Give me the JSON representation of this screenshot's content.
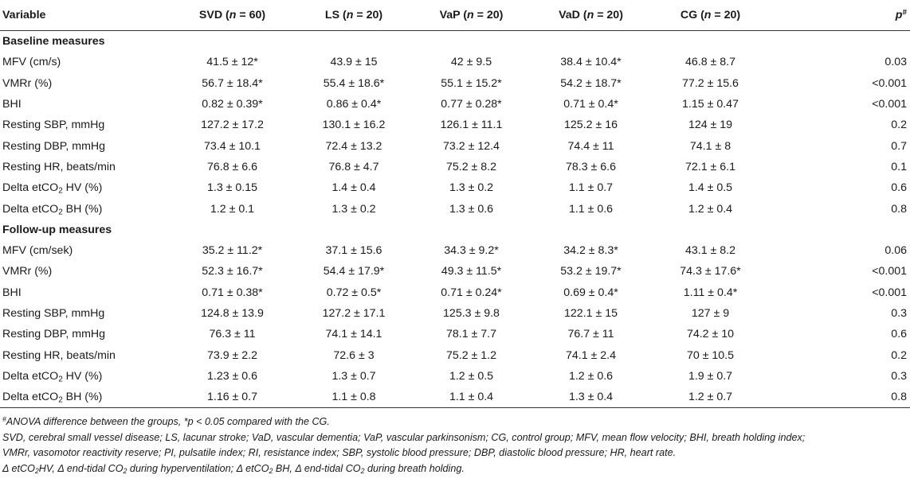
{
  "table": {
    "columns": {
      "variable": "Variable",
      "svd": {
        "name": "SVD",
        "open": "(",
        "n": "n",
        "eq": " = 60)"
      },
      "ls": {
        "name": "LS",
        "open": "(",
        "n": "n",
        "eq": " = 20)"
      },
      "vap": {
        "name": "VaP",
        "open": "(",
        "n": "n",
        "eq": " = 20)"
      },
      "vad": {
        "name": "VaD",
        "open": "(",
        "n": "n",
        "eq": " = 20)"
      },
      "cg": {
        "name": "CG",
        "open": "(",
        "n": "n",
        "eq": " = 20)"
      },
      "p": {
        "letter": "p",
        "sup": "#"
      }
    },
    "sections": [
      {
        "title": "Baseline measures",
        "rows": [
          {
            "label": "MFV (cm/s)",
            "values": [
              "41.5 ± 12*",
              "43.9 ± 15",
              "42 ± 9.5",
              "38.4 ± 10.4*",
              "46.8 ± 8.7"
            ],
            "p": "0.03"
          },
          {
            "label": "VMRr (%)",
            "values": [
              "56.7 ± 18.4*",
              "55.4 ± 18.6*",
              "55.1 ± 15.2*",
              "54.2 ± 18.7*",
              "77.2 ± 15.6"
            ],
            "p": "<0.001"
          },
          {
            "label": "BHI",
            "values": [
              "0.82 ± 0.39*",
              "0.86 ± 0.4*",
              "0.77 ± 0.28*",
              "0.71 ± 0.4*",
              "1.15 ± 0.47"
            ],
            "p": "<0.001"
          },
          {
            "label": "Resting SBP, mmHg",
            "values": [
              "127.2 ± 17.2",
              "130.1 ± 16.2",
              "126.1 ± 11.1",
              "125.2 ± 16",
              "124 ± 19"
            ],
            "p": "0.2"
          },
          {
            "label": "Resting DBP, mmHg",
            "values": [
              "73.4 ± 10.1",
              "72.4 ± 13.2",
              "73.2 ± 12.4",
              "74.4 ± 11",
              "74.1 ± 8"
            ],
            "p": "0.7"
          },
          {
            "label": "Resting HR, beats/min",
            "values": [
              "76.8 ± 6.6",
              "76.8 ± 4.7",
              "75.2 ± 8.2",
              "78.3 ± 6.6",
              "72.1 ± 6.1"
            ],
            "p": "0.1"
          },
          {
            "label_pre": "Delta etCO",
            "label_sub": "2",
            "label_post": " HV (%)",
            "values": [
              "1.3 ± 0.15",
              "1.4 ± 0.4",
              "1.3 ± 0.2",
              "1.1 ± 0.7",
              "1.4 ± 0.5"
            ],
            "p": "0.6"
          },
          {
            "label_pre": "Delta etCO",
            "label_sub": "2",
            "label_post": " BH (%)",
            "values": [
              "1.2 ± 0.1",
              "1.3 ± 0.2",
              "1.3 ± 0.6",
              "1.1 ± 0.6",
              "1.2 ± 0.4"
            ],
            "p": "0.8"
          }
        ]
      },
      {
        "title": "Follow-up measures",
        "rows": [
          {
            "label": "MFV (cm/sek)",
            "values": [
              "35.2 ± 11.2*",
              "37.1 ± 15.6",
              "34.3 ± 9.2*",
              "34.2 ± 8.3*",
              "43.1 ± 8.2"
            ],
            "p": "0.06"
          },
          {
            "label": "VMRr (%)",
            "values": [
              "52.3 ± 16.7*",
              "54.4 ± 17.9*",
              "49.3 ± 11.5*",
              "53.2 ± 19.7*",
              "74.3 ± 17.6*"
            ],
            "p": "<0.001"
          },
          {
            "label": "BHI",
            "values": [
              "0.71 ± 0.38*",
              "0.72 ± 0.5*",
              "0.71 ± 0.24*",
              "0.69 ± 0.4*",
              "1.11 ± 0.4*"
            ],
            "p": "<0.001"
          },
          {
            "label": "Resting SBP, mmHg",
            "values": [
              "124.8 ± 13.9",
              "127.2 ± 17.1",
              "125.3 ± 9.8",
              "122.1 ± 15",
              "127 ± 9"
            ],
            "p": "0.3"
          },
          {
            "label": "Resting DBP, mmHg",
            "values": [
              "76.3 ± 11",
              "74.1 ± 14.1",
              "78.1 ± 7.7",
              "76.7 ± 11",
              "74.2 ± 10"
            ],
            "p": "0.6"
          },
          {
            "label": "Resting HR, beats/min",
            "values": [
              "73.9 ± 2.2",
              "72.6 ± 3",
              "75.2 ± 1.2",
              "74.1 ± 2.4",
              "70 ± 10.5"
            ],
            "p": "0.2"
          },
          {
            "label_pre": "Delta etCO",
            "label_sub": "2",
            "label_post": " HV (%)",
            "values": [
              "1.23 ± 0.6",
              "1.3 ± 0.7",
              "1.2 ± 0.5",
              "1.2 ± 0.6",
              "1.9 ± 0.7"
            ],
            "p": "0.3"
          },
          {
            "label_pre": "Delta etCO",
            "label_sub": "2",
            "label_post": " BH (%)",
            "values": [
              "1.16 ± 0.7",
              "1.1 ± 0.8",
              "1.1 ± 0.4",
              "1.3 ± 0.4",
              "1.2 ± 0.7"
            ],
            "p": "0.8"
          }
        ]
      }
    ]
  },
  "footnotes": {
    "line1": {
      "sup": "#",
      "a": "ANOVA difference between the groups, *",
      "p": "p",
      "b": " < 0.05 compared with the CG."
    },
    "line2": "SVD, cerebral small vessel disease; LS, lacunar stroke; VaD, vascular dementia; VaP, vascular parkinsonism; CG, control group; MFV, mean flow velocity; BHI, breath holding index;",
    "line3": "VMRr, vasomotor reactivity reserve; PI, pulsatile index; RI, resistance index; SBP, systolic blood pressure; DBP, diastolic blood pressure; HR, heart rate.",
    "line4": {
      "a": "Δ etCO",
      "a_sub": "2",
      "b": "HV, Δ end-tidal CO",
      "b_sub": "2",
      "c": " during hyperventilation; Δ etCO",
      "c_sub": "2",
      "d": " BH, Δ end-tidal CO",
      "d_sub": "2",
      "e": " during breath holding."
    }
  }
}
